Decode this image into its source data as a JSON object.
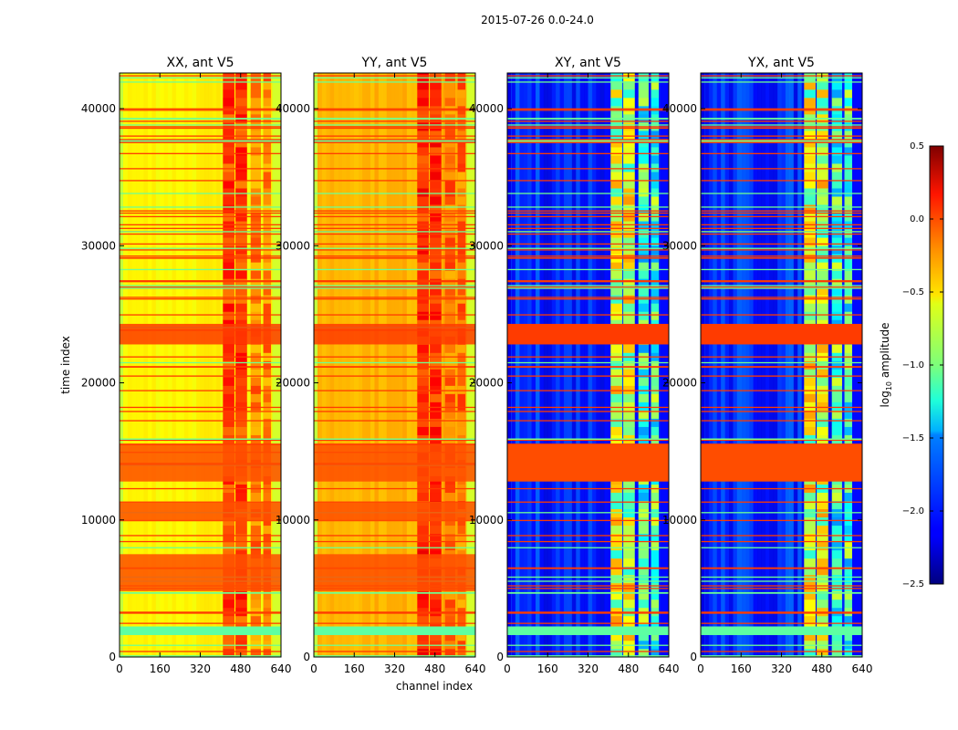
{
  "figure": {
    "suptitle": "2015-07-26 0.0-24.0",
    "ylabel": "time index",
    "xlabel": "channel index",
    "colorbar": {
      "label_main": "log",
      "label_sub": "10",
      "label_tail": " amplitude",
      "range": [
        -2.5,
        0.5
      ],
      "ticks": [
        "0.5",
        "0.0",
        "−0.5",
        "−1.0",
        "−1.5",
        "−2.0",
        "−2.5"
      ],
      "tick_values": [
        0.5,
        0.0,
        -0.5,
        -1.0,
        -1.5,
        -2.0,
        -2.5
      ],
      "colormap": "jet"
    }
  },
  "chart_data": {
    "type": "heatmap",
    "title": "2015-07-26 0.0-24.0",
    "xlabel": "channel index",
    "ylabel": "time index",
    "xlim": [
      0,
      640
    ],
    "ylim": [
      0,
      42600
    ],
    "xticks": [
      "0",
      "160",
      "320",
      "480",
      "640"
    ],
    "xtick_values": [
      0,
      160,
      320,
      480,
      640
    ],
    "yticks": [
      "0",
      "10000",
      "20000",
      "30000",
      "40000"
    ],
    "ytick_values": [
      0,
      10000,
      20000,
      30000,
      40000
    ],
    "colorbar_label": "log10 amplitude",
    "color_range": [
      -2.5,
      0.5
    ],
    "panels": [
      {
        "title": "XX, ant V5",
        "background_level": -0.6,
        "bright_channel_bands": [
          [
            410,
            510
          ],
          [
            520,
            600
          ]
        ],
        "bright_level": -0.1
      },
      {
        "title": "YY, ant V5",
        "background_level": -0.4,
        "bright_channel_bands": [
          [
            410,
            510
          ],
          [
            520,
            600
          ]
        ],
        "bright_level": -0.05
      },
      {
        "title": "XY, ant V5",
        "background_level": -2.0,
        "bright_channel_bands": [
          [
            410,
            510
          ],
          [
            520,
            600
          ]
        ],
        "bright_level": -0.9
      },
      {
        "title": "YX, ant V5",
        "background_level": -2.0,
        "bright_channel_bands": [
          [
            410,
            510
          ],
          [
            520,
            600
          ]
        ],
        "bright_level": -0.9
      }
    ],
    "flagged_time_ranges": [
      {
        "range": [
          1600,
          2200
        ],
        "level": -1.1
      },
      {
        "range": [
          4800,
          7500
        ],
        "level": -0.1,
        "panels": [
          "XX",
          "YY"
        ]
      },
      {
        "range": [
          9900,
          11300
        ],
        "level": -0.1,
        "panels": [
          "XX",
          "YY"
        ]
      },
      {
        "range": [
          22800,
          24300
        ],
        "level": -0.05
      },
      {
        "range": [
          12800,
          15500
        ],
        "level": -0.1
      }
    ]
  }
}
